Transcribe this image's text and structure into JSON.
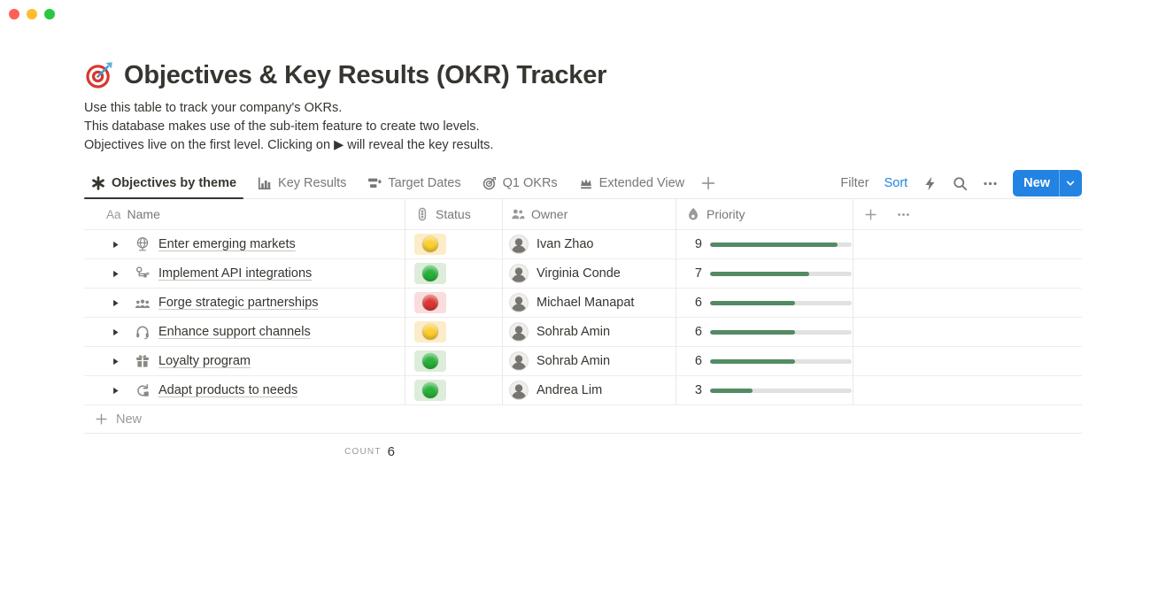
{
  "window": {
    "controls": [
      "close",
      "minimize",
      "zoom"
    ]
  },
  "page": {
    "icon": "target-emoji-icon",
    "title": "Objectives & Key Results (OKR) Tracker",
    "description_lines": [
      "Use this table to track your company's OKRs.",
      "This database makes use of the sub-item feature to create two levels.",
      "Objectives live on the first level. Clicking on ▶ will reveal the key results."
    ]
  },
  "toolbar": {
    "tabs": [
      {
        "label": "Objectives by theme",
        "icon": "asterisk-icon",
        "active": true
      },
      {
        "label": "Key Results",
        "icon": "bar-chart-icon",
        "active": false
      },
      {
        "label": "Target Dates",
        "icon": "timeline-icon",
        "active": false
      },
      {
        "label": "Q1 OKRs",
        "icon": "target-icon",
        "active": false
      },
      {
        "label": "Extended View",
        "icon": "crown-icon",
        "active": false
      }
    ],
    "filter_label": "Filter",
    "sort_label": "Sort",
    "new_label": "New",
    "action_icons": [
      "lightning-icon",
      "search-icon",
      "more-icon"
    ]
  },
  "table": {
    "columns": [
      {
        "key": "name",
        "icon": "text-icon",
        "icon_label": "Aa",
        "label": "Name"
      },
      {
        "key": "status",
        "icon": "traffic-light-icon",
        "label": "Status"
      },
      {
        "key": "owner",
        "icon": "people-icon",
        "label": "Owner"
      },
      {
        "key": "priority",
        "icon": "flame-icon",
        "label": "Priority"
      }
    ],
    "rows": [
      {
        "icon": "globe-icon",
        "title": "Enter emerging markets",
        "status": "yellow",
        "owner": "Ivan Zhao",
        "priority": 9
      },
      {
        "icon": "api-icon",
        "title": "Implement API integrations",
        "status": "green",
        "owner": "Virginia Conde",
        "priority": 7
      },
      {
        "icon": "team-icon",
        "title": "Forge strategic partnerships",
        "status": "red",
        "owner": "Michael Manapat",
        "priority": 6
      },
      {
        "icon": "headphones-icon",
        "title": "Enhance support channels",
        "status": "yellow",
        "owner": "Sohrab Amin",
        "priority": 6
      },
      {
        "icon": "gift-icon",
        "title": "Loyalty program",
        "status": "green",
        "owner": "Sohrab Amin",
        "priority": 6
      },
      {
        "icon": "adapt-icon",
        "title": "Adapt products to needs",
        "status": "green",
        "owner": "Andrea Lim",
        "priority": 3
      }
    ],
    "priority_max": 10,
    "new_row_label": "New",
    "footer": {
      "count_label": "COUNT",
      "count_value": 6
    }
  },
  "colors": {
    "accent": "#2383e2",
    "priority_bar": "#548a64",
    "status": {
      "yellow": {
        "dot": "#fccf2e",
        "bg": "#fdecc8"
      },
      "green": {
        "dot": "#28b23a",
        "bg": "#dcedda"
      },
      "red": {
        "dot": "#dd3636",
        "bg": "#fadcdc"
      }
    }
  }
}
